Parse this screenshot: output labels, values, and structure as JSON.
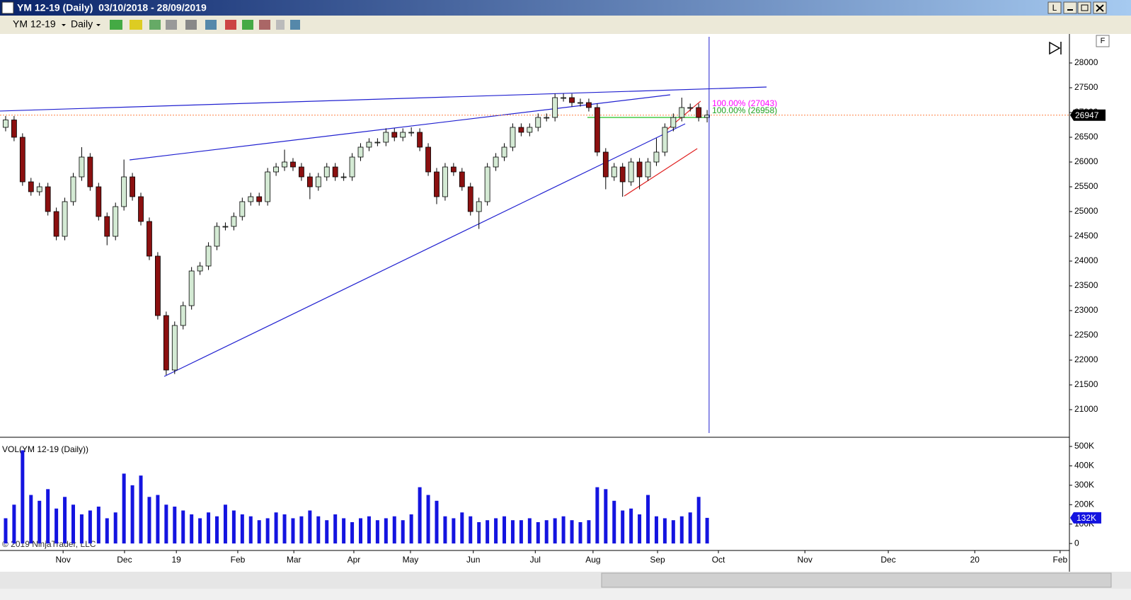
{
  "window": {
    "title": "YM 12-19 (Daily)  03/10/2018 - 28/09/2019",
    "button": "L"
  },
  "toolbar": {
    "instrument": "YM 12-19",
    "period": "Daily"
  },
  "copyright": "© 2019 NinjaTrader, LLC",
  "chart_data": [
    {
      "type": "candlestick",
      "x": [
        0,
        3,
        6,
        9,
        12,
        15,
        18,
        21,
        24,
        27,
        30,
        33,
        36,
        39,
        42,
        45,
        48,
        51,
        54,
        57,
        60,
        63,
        66,
        69,
        72,
        75,
        78,
        81,
        84,
        87,
        90,
        93,
        96,
        99,
        102,
        105,
        108,
        111,
        114,
        117,
        120,
        123,
        126,
        129,
        132,
        135,
        138,
        141,
        144,
        147,
        150,
        153,
        156,
        159,
        162,
        165,
        168,
        171,
        174,
        177,
        180,
        183,
        186,
        189,
        192,
        195,
        198,
        201,
        204,
        207,
        210,
        213,
        216,
        219,
        222,
        225,
        228,
        231,
        234,
        237,
        240,
        243,
        246,
        249
      ],
      "open": [
        26700,
        26850,
        26500,
        25600,
        25400,
        25500,
        25000,
        24500,
        25200,
        25700,
        26100,
        25500,
        24900,
        24500,
        25100,
        25700,
        25300,
        24800,
        24100,
        22900,
        21800,
        22700,
        23100,
        23800,
        23900,
        24300,
        24700,
        24700,
        24900,
        25200,
        25300,
        25200,
        25800,
        25900,
        26000,
        25900,
        25700,
        25500,
        25700,
        25900,
        25700,
        25700,
        26100,
        26300,
        26400,
        26400,
        26600,
        26500,
        26600,
        26600,
        26300,
        25800,
        25300,
        25900,
        25800,
        25500,
        25000,
        25200,
        25900,
        26100,
        26300,
        26700,
        26600,
        26700,
        26900,
        26900,
        27300,
        27300,
        27200,
        27200,
        27100,
        26200,
        25700,
        25900,
        25600,
        26000,
        25700,
        26000,
        26200,
        26700,
        26900,
        27100,
        27100,
        26900
      ],
      "high": [
        26930,
        26930,
        26580,
        25680,
        25580,
        25580,
        25080,
        25280,
        25780,
        26300,
        26180,
        25580,
        24980,
        25180,
        26050,
        25780,
        25380,
        24880,
        24180,
        22980,
        22780,
        23180,
        23880,
        23980,
        24380,
        24780,
        24780,
        24980,
        25280,
        25380,
        25380,
        25880,
        25980,
        26250,
        26080,
        25980,
        25780,
        25780,
        25980,
        25980,
        25780,
        26180,
        26380,
        26480,
        26480,
        26680,
        26680,
        26680,
        26700,
        26680,
        26380,
        25880,
        25980,
        25980,
        25880,
        25580,
        25280,
        25980,
        26180,
        26380,
        26780,
        26780,
        26780,
        26980,
        26980,
        27380,
        27380,
        27380,
        27280,
        27280,
        27180,
        26280,
        25980,
        25980,
        26080,
        26080,
        26080,
        26480,
        26780,
        26980,
        27300,
        27180,
        27180,
        27050
      ],
      "low": [
        26620,
        26420,
        25520,
        25320,
        25320,
        24920,
        24420,
        24420,
        25120,
        25620,
        25420,
        24820,
        24320,
        24420,
        25020,
        25220,
        24720,
        24020,
        22820,
        21700,
        21720,
        22620,
        23020,
        23720,
        23820,
        24220,
        24620,
        24620,
        24820,
        25120,
        25120,
        25120,
        25720,
        25820,
        25820,
        25620,
        25250,
        25420,
        25620,
        25620,
        25620,
        25620,
        26020,
        26220,
        26320,
        26320,
        26420,
        26420,
        26520,
        26220,
        25720,
        25150,
        25220,
        25720,
        25420,
        24920,
        24650,
        25120,
        25820,
        26020,
        26220,
        26520,
        26520,
        26620,
        26820,
        26820,
        27220,
        27120,
        27120,
        27020,
        26120,
        25450,
        25620,
        25300,
        25520,
        25450,
        25620,
        25920,
        26120,
        26620,
        26820,
        27020,
        26820,
        26800
      ],
      "close": [
        26850,
        26500,
        25600,
        25400,
        25500,
        25000,
        24500,
        25200,
        25700,
        26100,
        25500,
        24900,
        24500,
        25100,
        25700,
        25300,
        24800,
        24100,
        22900,
        21800,
        22700,
        23100,
        23800,
        23900,
        24300,
        24700,
        24700,
        24900,
        25200,
        25300,
        25200,
        25800,
        25900,
        26000,
        25900,
        25700,
        25500,
        25700,
        25900,
        25700,
        25700,
        26100,
        26300,
        26400,
        26400,
        26600,
        26500,
        26600,
        26600,
        26300,
        25800,
        25300,
        25900,
        25800,
        25500,
        25000,
        25200,
        25900,
        26100,
        26300,
        26700,
        26600,
        26700,
        26900,
        26900,
        27300,
        27300,
        27200,
        27200,
        27100,
        26200,
        25700,
        25900,
        25600,
        26000,
        25700,
        26000,
        26200,
        26700,
        26900,
        27100,
        27100,
        26900,
        26947
      ],
      "up_color": "#d4ead4",
      "down_color": "#8b1010",
      "xlim": [
        -2,
        377.6
      ],
      "ylim": [
        20457,
        28557
      ],
      "yticks": [
        21000,
        21500,
        22000,
        22500,
        23000,
        23500,
        24000,
        24500,
        25000,
        25500,
        26000,
        26500,
        27000,
        27500,
        28000
      ],
      "last_price": 26947,
      "trendlines": [
        {
          "color": "#2020d0",
          "x": [
            -2,
            270.1
          ],
          "y": [
            27029,
            27514
          ]
        },
        {
          "color": "#2020d0",
          "x": [
            44,
            235.9
          ],
          "y": [
            26043,
            27357
          ]
        },
        {
          "color": "#2020d0",
          "x": [
            56.3,
            241.2
          ],
          "y": [
            21671,
            26771
          ]
        },
        {
          "color": "#e02020",
          "x": [
            219.6,
            245.5
          ],
          "y": [
            25314,
            26271
          ]
        },
        {
          "color": "#e02020",
          "x": [
            234.2,
            246.7
          ],
          "y": [
            26629,
            27229
          ]
        },
        {
          "color": "#20c020",
          "x": [
            206.5,
            249.2
          ],
          "y": [
            26900,
            26900
          ]
        }
      ],
      "annotations": [
        {
          "text": "100.00% (27043)",
          "color": "#ff00ff",
          "x": 250,
          "y": 27171
        },
        {
          "text": "100.00% (26958)",
          "color": "#20a020",
          "x": 250,
          "y": 27029
        }
      ],
      "cursor_x": 249.7,
      "corner_label": "F"
    },
    {
      "type": "bar",
      "title": "VOL(YM 12-19 (Daily))",
      "x": [
        0,
        3,
        6,
        9,
        12,
        15,
        18,
        21,
        24,
        27,
        30,
        33,
        36,
        39,
        42,
        45,
        48,
        51,
        54,
        57,
        60,
        63,
        66,
        69,
        72,
        75,
        78,
        81,
        84,
        87,
        90,
        93,
        96,
        99,
        102,
        105,
        108,
        111,
        114,
        117,
        120,
        123,
        126,
        129,
        132,
        135,
        138,
        141,
        144,
        147,
        150,
        153,
        156,
        159,
        162,
        165,
        168,
        171,
        174,
        177,
        180,
        183,
        186,
        189,
        192,
        195,
        198,
        201,
        204,
        207,
        210,
        213,
        216,
        219,
        222,
        225,
        228,
        231,
        234,
        237,
        240,
        243,
        246,
        249
      ],
      "values": [
        130000,
        200000,
        480000,
        250000,
        220000,
        280000,
        180000,
        240000,
        200000,
        150000,
        170000,
        190000,
        130000,
        160000,
        360000,
        300000,
        350000,
        240000,
        250000,
        200000,
        190000,
        170000,
        150000,
        130000,
        160000,
        140000,
        200000,
        170000,
        150000,
        140000,
        120000,
        130000,
        160000,
        150000,
        130000,
        140000,
        170000,
        140000,
        120000,
        150000,
        130000,
        110000,
        130000,
        140000,
        120000,
        130000,
        140000,
        120000,
        150000,
        290000,
        250000,
        220000,
        140000,
        130000,
        160000,
        140000,
        110000,
        120000,
        130000,
        140000,
        120000,
        120000,
        130000,
        110000,
        120000,
        130000,
        140000,
        120000,
        110000,
        120000,
        290000,
        280000,
        220000,
        170000,
        180000,
        150000,
        250000,
        140000,
        130000,
        120000,
        140000,
        160000,
        240000,
        132000
      ],
      "color": "#1414e0",
      "xlim": [
        -2,
        377.6
      ],
      "ylim": [
        -36000,
        540000
      ],
      "yticks": [
        0,
        {
          "value": 100000,
          "label": "100K"
        },
        {
          "value": 200000,
          "label": "200K"
        },
        {
          "value": 300000,
          "label": "300K"
        },
        {
          "value": 400000,
          "label": "400K"
        },
        {
          "value": 500000,
          "label": "500K"
        }
      ],
      "xticks": [
        {
          "value": 20.4,
          "label": "Nov"
        },
        {
          "value": 42.2,
          "label": "Dec"
        },
        {
          "value": 60.6,
          "label": "19"
        },
        {
          "value": 82.4,
          "label": "Feb"
        },
        {
          "value": 102.3,
          "label": "Mar"
        },
        {
          "value": 123.6,
          "label": "Apr"
        },
        {
          "value": 143.7,
          "label": "May"
        },
        {
          "value": 166,
          "label": "Jun"
        },
        {
          "value": 188,
          "label": "Jul"
        },
        {
          "value": 208.5,
          "label": "Aug"
        },
        {
          "value": 231.4,
          "label": "Sep"
        },
        {
          "value": 253,
          "label": "Oct"
        },
        {
          "value": 283.7,
          "label": "Nov"
        },
        {
          "value": 313.3,
          "label": "Dec"
        },
        {
          "value": 344,
          "label": "20"
        },
        {
          "value": 374.3,
          "label": "Feb"
        }
      ],
      "last_volume": {
        "value": 132000,
        "label": "132K"
      }
    }
  ]
}
